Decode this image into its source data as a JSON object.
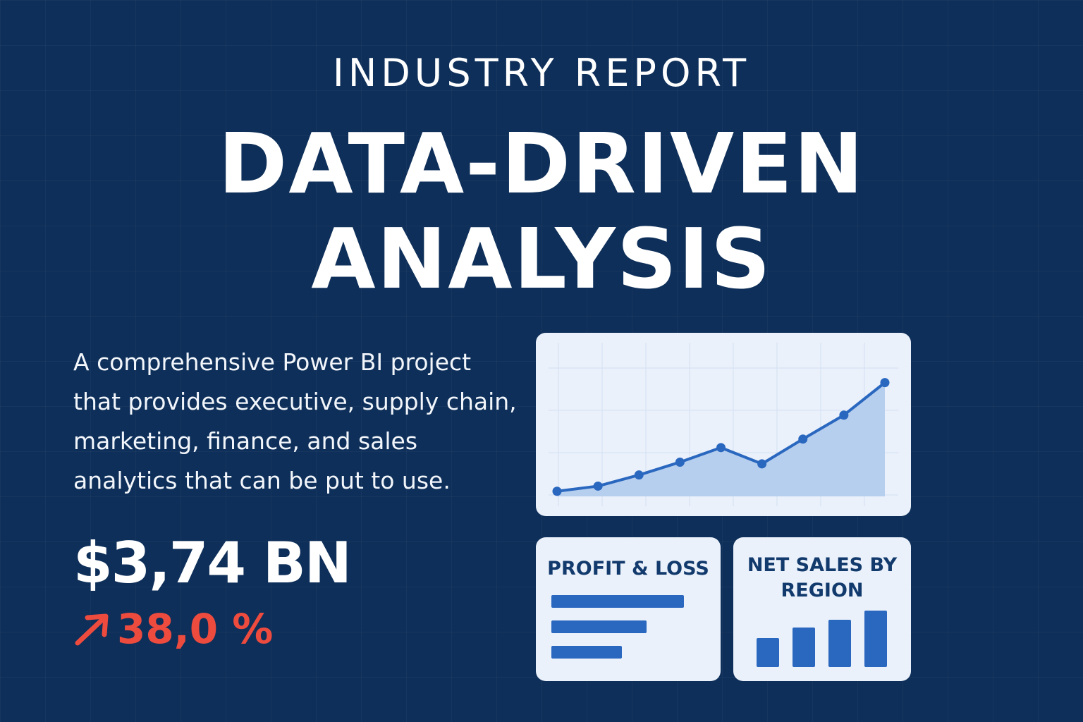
{
  "header": {
    "kicker": "INDUSTRY REPORT",
    "title_line1": "DATA-DRIVEN",
    "title_line2": "ANALYSIS"
  },
  "description": "A comprehensive Power BI project that provides executive, supply chain, marketing, finance, and sales analytics that can be put to use.",
  "kpi": {
    "value": "$3,74 BN",
    "change": "38,0 %",
    "change_icon": "arrow-up-right-icon",
    "change_color": "#ee4b3f"
  },
  "colors": {
    "background": "#0e2f59",
    "card": "#eaf1fb",
    "accent": "#2a67bf",
    "area_fill": "#b7cfee"
  },
  "chart_data": [
    {
      "type": "area",
      "x": [
        1,
        2,
        3,
        4,
        5,
        6,
        7,
        8,
        9
      ],
      "values": [
        6,
        12,
        25,
        40,
        57,
        38,
        67,
        95,
        133
      ],
      "ylim": [
        0,
        150
      ],
      "grid": true
    },
    {
      "type": "bar",
      "title": "PROFIT & LOSS",
      "orientation": "horizontal",
      "values": [
        100,
        72,
        53
      ]
    },
    {
      "type": "bar",
      "title": "NET SALES BY REGION",
      "orientation": "vertical",
      "values": [
        40,
        55,
        65,
        78
      ]
    }
  ]
}
